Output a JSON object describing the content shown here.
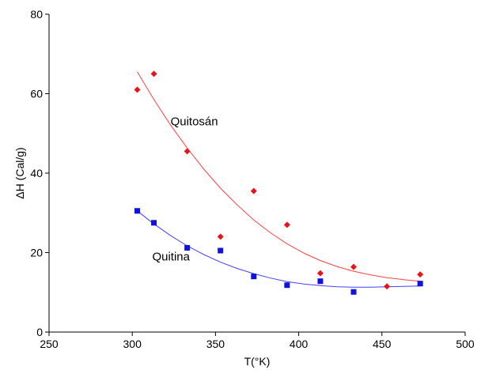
{
  "chart_data": {
    "type": "scatter",
    "title": "",
    "xlabel": "T(°K)",
    "ylabel": "ΔH  (Cal/g)",
    "xlim": [
      250,
      500
    ],
    "ylim": [
      0,
      80
    ],
    "xticks": [
      250,
      300,
      350,
      400,
      450,
      500
    ],
    "yticks": [
      0,
      20,
      40,
      60,
      80
    ],
    "grid": false,
    "legend": "none",
    "series": [
      {
        "name": "Quitosán",
        "color": "#e8141c",
        "fit_color": "#ff4040",
        "marker": "diamond",
        "points": [
          {
            "x": 303,
            "y": 61
          },
          {
            "x": 313,
            "y": 65
          },
          {
            "x": 333,
            "y": 45.5
          },
          {
            "x": 353,
            "y": 24
          },
          {
            "x": 373,
            "y": 35.5
          },
          {
            "x": 393,
            "y": 27
          },
          {
            "x": 413,
            "y": 14.8
          },
          {
            "x": 433,
            "y": 16.4
          },
          {
            "x": 453,
            "y": 11.5
          },
          {
            "x": 473,
            "y": 14.5
          }
        ],
        "fit": [
          {
            "x": 303,
            "y": 65.5
          },
          {
            "x": 313,
            "y": 58.5
          },
          {
            "x": 323,
            "y": 52.1
          },
          {
            "x": 333,
            "y": 46.3
          },
          {
            "x": 343,
            "y": 41
          },
          {
            "x": 353,
            "y": 36.2
          },
          {
            "x": 363,
            "y": 32
          },
          {
            "x": 373,
            "y": 28.2
          },
          {
            "x": 383,
            "y": 25
          },
          {
            "x": 393,
            "y": 22.2
          },
          {
            "x": 403,
            "y": 19.9
          },
          {
            "x": 413,
            "y": 18
          },
          {
            "x": 423,
            "y": 16.5
          },
          {
            "x": 433,
            "y": 15.3
          },
          {
            "x": 443,
            "y": 14.4
          },
          {
            "x": 453,
            "y": 13.7
          },
          {
            "x": 463,
            "y": 13.2
          },
          {
            "x": 473,
            "y": 12.8
          }
        ]
      },
      {
        "name": "Quitina",
        "color": "#1010e0",
        "fit_color": "#4040ff",
        "marker": "square",
        "points": [
          {
            "x": 303,
            "y": 30.5
          },
          {
            "x": 313,
            "y": 27.5
          },
          {
            "x": 333,
            "y": 21.2
          },
          {
            "x": 353,
            "y": 20.5
          },
          {
            "x": 373,
            "y": 14
          },
          {
            "x": 393,
            "y": 11.8
          },
          {
            "x": 413,
            "y": 12.8
          },
          {
            "x": 433,
            "y": 10.1
          },
          {
            "x": 473,
            "y": 12.2
          }
        ],
        "fit": [
          {
            "x": 303,
            "y": 30.5
          },
          {
            "x": 313,
            "y": 27.2
          },
          {
            "x": 323,
            "y": 24.3
          },
          {
            "x": 333,
            "y": 21.7
          },
          {
            "x": 343,
            "y": 19.5
          },
          {
            "x": 353,
            "y": 17.6
          },
          {
            "x": 363,
            "y": 16
          },
          {
            "x": 373,
            "y": 14.7
          },
          {
            "x": 383,
            "y": 13.6
          },
          {
            "x": 393,
            "y": 12.7
          },
          {
            "x": 403,
            "y": 12.1
          },
          {
            "x": 413,
            "y": 11.7
          },
          {
            "x": 423,
            "y": 11.4
          },
          {
            "x": 433,
            "y": 11.3
          },
          {
            "x": 443,
            "y": 11.3
          },
          {
            "x": 453,
            "y": 11.4
          },
          {
            "x": 463,
            "y": 11.5
          },
          {
            "x": 473,
            "y": 11.6
          }
        ]
      }
    ],
    "annotations": [
      {
        "text": "Quitosán",
        "x": 323,
        "y": 52
      },
      {
        "text": "Quitina",
        "x": 312,
        "y": 18
      }
    ]
  }
}
